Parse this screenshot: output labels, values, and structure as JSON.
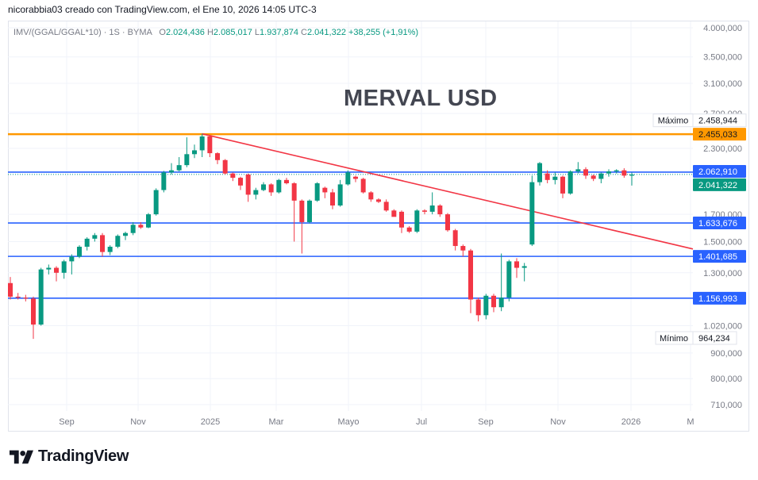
{
  "header": {
    "attribution": "nicorabbia03 creado con TradingView.com, el Ene 10, 2026 14:05 UTC-3"
  },
  "legend": {
    "symbol": "IMV/(GGAL/GGAL*10) · 1S · BYMA",
    "o_label": "O",
    "o_value": "2.024,436",
    "h_label": "H",
    "h_value": "2.085,017",
    "l_label": "L",
    "l_value": "1.937,874",
    "c_label": "C",
    "c_value": "2.041,322",
    "change": "+38,255 (+1,91%)"
  },
  "colors": {
    "up": "#089981",
    "down": "#f23645",
    "orange": "#ff9800",
    "blue": "#2962ff",
    "trend": "#f23645",
    "axis_text": "#787b86",
    "grid": "#f0f3fa"
  },
  "brand": {
    "name": "TradingView",
    "icon": "tradingview-logo-icon"
  },
  "chart_data": {
    "type": "candlestick",
    "title": "MERVAL USD",
    "y_scale": "log",
    "y_ticks": [
      {
        "v": 4000000,
        "label": "4.000,000"
      },
      {
        "v": 3500000,
        "label": "3.500,000"
      },
      {
        "v": 3100000,
        "label": "3.100,000"
      },
      {
        "v": 2700000,
        "label": "2.700,000"
      },
      {
        "v": 2300000,
        "label": "2.300,000"
      },
      {
        "v": 1700000,
        "label": "1.700,000"
      },
      {
        "v": 1500000,
        "label": "1.500,000"
      },
      {
        "v": 1300000,
        "label": "1.300,000"
      },
      {
        "v": 1020000,
        "label": "1.020,000"
      },
      {
        "v": 900000,
        "label": "900,000"
      },
      {
        "v": 800000,
        "label": "800,000"
      },
      {
        "v": 710000,
        "label": "710,000"
      }
    ],
    "x_ticks": [
      "Sep",
      "Nov",
      "2025",
      "Mar",
      "Mayo",
      "Jul",
      "Sep",
      "Nov",
      "2026",
      "M"
    ],
    "horizontal_lines": [
      {
        "value": 2455033,
        "label": "2.455,033",
        "color": "#ff9800"
      },
      {
        "value": 2062910,
        "label": "2.062,910",
        "color": "#2962ff"
      },
      {
        "value": 1633676,
        "label": "1.633,676",
        "color": "#2962ff"
      },
      {
        "value": 1401685,
        "label": "1.401,685",
        "color": "#2962ff"
      },
      {
        "value": 1156993,
        "label": "1.156,993",
        "color": "#2962ff"
      }
    ],
    "last_price": {
      "value": 2041322,
      "label": "2.041,322"
    },
    "max_marker": {
      "text": "Máximo",
      "value": 2458944,
      "label": "2.458,944"
    },
    "min_marker": {
      "text": "Mínimo",
      "value": 964234,
      "label": "964,234"
    },
    "candles": [
      [
        1240000,
        1165000,
        1275000,
        1150000
      ],
      [
        1165000,
        1160000,
        1185000,
        1150000
      ],
      [
        1160000,
        1155000,
        1175000,
        1140000
      ],
      [
        1155000,
        1025000,
        1165000,
        960000
      ],
      [
        1025000,
        1320000,
        1330000,
        1020000
      ],
      [
        1320000,
        1330000,
        1350000,
        1290000
      ],
      [
        1330000,
        1300000,
        1340000,
        1250000
      ],
      [
        1300000,
        1370000,
        1380000,
        1265000
      ],
      [
        1370000,
        1400000,
        1415000,
        1290000
      ],
      [
        1400000,
        1465000,
        1475000,
        1390000
      ],
      [
        1465000,
        1520000,
        1530000,
        1440000
      ],
      [
        1520000,
        1545000,
        1560000,
        1500000
      ],
      [
        1545000,
        1430000,
        1560000,
        1400000
      ],
      [
        1430000,
        1465000,
        1475000,
        1410000
      ],
      [
        1465000,
        1540000,
        1550000,
        1455000
      ],
      [
        1540000,
        1560000,
        1570000,
        1510000
      ],
      [
        1560000,
        1620000,
        1640000,
        1545000
      ],
      [
        1620000,
        1600000,
        1640000,
        1590000
      ],
      [
        1600000,
        1700000,
        1710000,
        1595000
      ],
      [
        1700000,
        1900000,
        1915000,
        1690000
      ],
      [
        1900000,
        2060000,
        2075000,
        1880000
      ],
      [
        2060000,
        2080000,
        2150000,
        2040000
      ],
      [
        2080000,
        2130000,
        2210000,
        2070000
      ],
      [
        2130000,
        2240000,
        2420000,
        2110000
      ],
      [
        2240000,
        2280000,
        2340000,
        2200000
      ],
      [
        2280000,
        2430000,
        2460000,
        2210000
      ],
      [
        2430000,
        2250000,
        2445000,
        2210000
      ],
      [
        2250000,
        2180000,
        2260000,
        2140000
      ],
      [
        2180000,
        2050000,
        2190000,
        2040000
      ],
      [
        2050000,
        2010000,
        2060000,
        1980000
      ],
      [
        2010000,
        1940000,
        2020000,
        1900000
      ],
      [
        2040000,
        1860000,
        2050000,
        1800000
      ],
      [
        1860000,
        1900000,
        1920000,
        1820000
      ],
      [
        1900000,
        1950000,
        1970000,
        1890000
      ],
      [
        1950000,
        1880000,
        1960000,
        1850000
      ],
      [
        1880000,
        1990000,
        2000000,
        1870000
      ],
      [
        1990000,
        1960000,
        2010000,
        1950000
      ],
      [
        1960000,
        1810000,
        1970000,
        1500000
      ],
      [
        1810000,
        1640000,
        1820000,
        1420000
      ],
      [
        1640000,
        1810000,
        1820000,
        1630000
      ],
      [
        1810000,
        1960000,
        1970000,
        1800000
      ],
      [
        1920000,
        1880000,
        1930000,
        1830000
      ],
      [
        1880000,
        1770000,
        1910000,
        1740000
      ],
      [
        1770000,
        1950000,
        1990000,
        1760000
      ],
      [
        1950000,
        2060000,
        2080000,
        1940000
      ],
      [
        2020000,
        2000000,
        2030000,
        1970000
      ],
      [
        2000000,
        1880000,
        2010000,
        1870000
      ],
      [
        1880000,
        1820000,
        1890000,
        1800000
      ],
      [
        1820000,
        1800000,
        1830000,
        1790000
      ],
      [
        1800000,
        1730000,
        1820000,
        1720000
      ],
      [
        1730000,
        1680000,
        1740000,
        1690000
      ],
      [
        1720000,
        1600000,
        1730000,
        1560000
      ],
      [
        1600000,
        1570000,
        1610000,
        1560000
      ],
      [
        1570000,
        1730000,
        1740000,
        1560000
      ],
      [
        1730000,
        1720000,
        1740000,
        1700000
      ],
      [
        1720000,
        1770000,
        1880000,
        1700000
      ],
      [
        1770000,
        1700000,
        1780000,
        1680000
      ],
      [
        1700000,
        1580000,
        1710000,
        1570000
      ],
      [
        1580000,
        1470000,
        1590000,
        1440000
      ],
      [
        1470000,
        1440000,
        1480000,
        1400000
      ],
      [
        1440000,
        1150000,
        1450000,
        1080000
      ],
      [
        1150000,
        1070000,
        1160000,
        1040000
      ],
      [
        1070000,
        1170000,
        1180000,
        1050000
      ],
      [
        1170000,
        1110000,
        1180000,
        1085000
      ],
      [
        1110000,
        1160000,
        1420000,
        1090000
      ],
      [
        1160000,
        1370000,
        1380000,
        1140000
      ],
      [
        1370000,
        1330000,
        1390000,
        1270000
      ],
      [
        1330000,
        1340000,
        1360000,
        1250000
      ],
      [
        1480000,
        1970000,
        2030000,
        1470000
      ],
      [
        1970000,
        2150000,
        2160000,
        1940000
      ],
      [
        2050000,
        1990000,
        2080000,
        1960000
      ],
      [
        1990000,
        2020000,
        2060000,
        1950000
      ],
      [
        2020000,
        1870000,
        2030000,
        1830000
      ],
      [
        1870000,
        2070000,
        2080000,
        1860000
      ],
      [
        2070000,
        2090000,
        2160000,
        2050000
      ],
      [
        2090000,
        2030000,
        2110000,
        2000000
      ],
      [
        2030000,
        2000000,
        2040000,
        1980000
      ],
      [
        2000000,
        2050000,
        2060000,
        1960000
      ],
      [
        2050000,
        2070000,
        2090000,
        2020000
      ],
      [
        2070000,
        2080000,
        2090000,
        2050000
      ],
      [
        2080000,
        2030000,
        2100000,
        2010000
      ],
      [
        2030000,
        2040000,
        2060000,
        1940000
      ]
    ],
    "trendline": {
      "from": {
        "candle": 25,
        "value": 2458944
      },
      "to_value_at_right": 1450000
    }
  }
}
